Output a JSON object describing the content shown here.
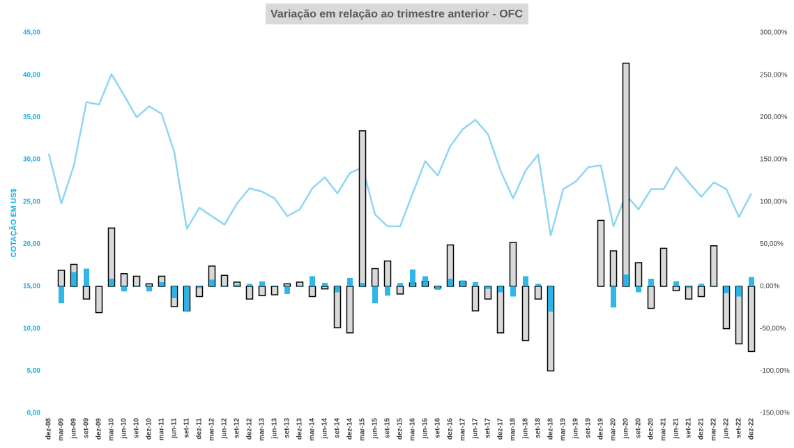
{
  "chart_data": {
    "type": "bar",
    "title": "Variação em relação ao trimestre anterior - OFC",
    "y_label": "COTAÇÃO EM US$",
    "categories": [
      "dez-08",
      "mar-09",
      "jun-09",
      "set-09",
      "dez-09",
      "mar-10",
      "jun-10",
      "set-10",
      "dez-10",
      "mar-11",
      "jun-11",
      "set-11",
      "dez-11",
      "mar-12",
      "jun-12",
      "set-12",
      "dez-12",
      "mar-13",
      "jun-13",
      "set-13",
      "dez-13",
      "mar-14",
      "jun-14",
      "set-14",
      "dez-14",
      "mar-15",
      "jun-15",
      "set-15",
      "dez-15",
      "mar-16",
      "jun-16",
      "set-16",
      "dez-16",
      "mar-17",
      "jun-17",
      "set-17",
      "dez-17",
      "mar-18",
      "jun-18",
      "set-18",
      "dez-18",
      "mar-19",
      "jun-19",
      "set-19",
      "dez-19",
      "mar-20",
      "jun-20",
      "set-20",
      "dez-20",
      "mar-21",
      "jun-21",
      "set-21",
      "dez-21",
      "mar-22",
      "jun-22",
      "set-22",
      "dez-22"
    ],
    "ylim": [
      0,
      45
    ],
    "yticks": [
      {
        "value": 0,
        "label": "0,00"
      },
      {
        "value": 5,
        "label": "5,00"
      },
      {
        "value": 10,
        "label": "10,00"
      },
      {
        "value": 15,
        "label": "15,00"
      },
      {
        "value": 20,
        "label": "20,00"
      },
      {
        "value": 25,
        "label": "25,00"
      },
      {
        "value": 30,
        "label": "30,00"
      },
      {
        "value": 35,
        "label": "35,00"
      },
      {
        "value": 40,
        "label": "40,00"
      },
      {
        "value": 45,
        "label": "45,00"
      }
    ],
    "y2lim": [
      -150,
      300
    ],
    "y2ticks": [
      {
        "value": -150,
        "label": "-150,00%"
      },
      {
        "value": -100,
        "label": "-100,00%"
      },
      {
        "value": -50,
        "label": "-50,00%"
      },
      {
        "value": 0,
        "label": "0,00%"
      },
      {
        "value": 50,
        "label": "50,00%"
      },
      {
        "value": 100,
        "label": "100,00%"
      },
      {
        "value": 150,
        "label": "150,00%"
      },
      {
        "value": 200,
        "label": "200,00%"
      },
      {
        "value": 250,
        "label": "250,00%"
      },
      {
        "value": 300,
        "label": "300,00%"
      }
    ],
    "series": [
      {
        "type": "bar",
        "axis": "y2",
        "color": "#d9d9d9",
        "stroke": "#000000",
        "values": [
          null,
          19,
          26,
          -15,
          -31,
          69,
          15,
          12,
          3,
          12,
          -24,
          -29,
          -12,
          24,
          13,
          5,
          -15,
          -11,
          -10,
          3,
          5,
          -12,
          -3,
          -49,
          -55,
          184,
          21,
          30,
          -9,
          4,
          6,
          -2,
          49,
          6,
          -29,
          -15,
          -55,
          52,
          -64,
          -15,
          -100,
          null,
          null,
          null,
          78,
          42,
          264,
          28,
          -26,
          45,
          -5,
          -15,
          -12,
          48,
          -50,
          -68,
          -77
        ]
      },
      {
        "type": "bar",
        "axis": "y2",
        "color": "#1aaee5",
        "values": [
          null,
          -20,
          17,
          21,
          null,
          9,
          -6,
          0,
          -6,
          5,
          -14,
          -30,
          -2,
          8,
          0,
          2,
          3,
          6,
          1,
          -9,
          0,
          12,
          4,
          -7,
          10,
          4,
          -20,
          -11,
          4,
          20,
          12,
          -4,
          9,
          7,
          5,
          -3,
          -7,
          -12,
          12,
          3,
          -30,
          null,
          null,
          null,
          null,
          -25,
          14,
          -7,
          9,
          null,
          6,
          -2,
          3,
          1,
          -8,
          -12,
          11
        ]
      },
      {
        "type": "line",
        "axis": "y",
        "color": "#8fd6f2",
        "values": [
          30.7,
          24.8,
          29.3,
          36.8,
          36.5,
          40.1,
          37.6,
          35.0,
          36.3,
          35.4,
          30.9,
          21.8,
          24.3,
          23.3,
          22.3,
          24.8,
          26.6,
          26.2,
          25.4,
          23.3,
          24.1,
          26.6,
          27.9,
          26.0,
          28.4,
          29.1,
          23.5,
          22.1,
          22.1,
          26.0,
          29.8,
          28.1,
          31.6,
          33.6,
          34.7,
          33.0,
          28.7,
          25.4,
          28.7,
          30.6,
          21.0,
          26.5,
          27.4,
          29.1,
          29.3,
          22.1,
          25.8,
          24.1,
          26.5,
          26.5,
          29.1,
          27.3,
          25.6,
          27.3,
          26.5,
          23.2,
          26.0
        ]
      }
    ]
  }
}
